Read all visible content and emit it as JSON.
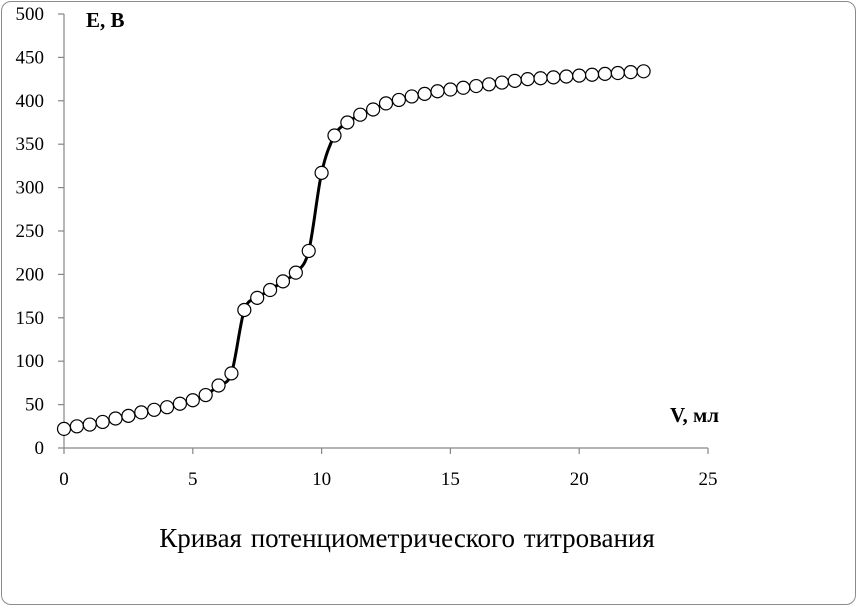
{
  "chart_data": {
    "type": "scatter",
    "title": "",
    "caption": "Кривая потенциометрического  титрования",
    "xlabel": "V, мл",
    "ylabel": "E, В",
    "xlim": [
      0,
      25
    ],
    "ylim": [
      0,
      500
    ],
    "xticks": [
      0,
      5,
      10,
      15,
      20,
      25
    ],
    "yticks": [
      0,
      50,
      100,
      150,
      200,
      250,
      300,
      350,
      400,
      450,
      500
    ],
    "grid": false,
    "legend": "none",
    "marker": "open-circle",
    "line": "smooth",
    "colors": {
      "line": "#000000",
      "marker_fill": "#ffffff",
      "marker_edge": "#000000",
      "axis": "#868686",
      "frame": "#8c8c8c"
    },
    "series": [
      {
        "x": [
          0,
          0.5,
          1,
          1.5,
          2,
          2.5,
          3,
          3.5,
          4,
          4.5,
          5,
          5.5,
          6,
          6.5,
          7,
          7.5,
          8,
          8.5,
          9,
          9.5,
          10,
          10.5,
          11,
          11.5,
          12,
          12.5,
          13,
          13.5,
          14,
          14.5,
          15,
          15.5,
          16,
          16.5,
          17,
          17.5,
          18,
          18.5,
          19,
          19.5,
          20,
          20.5,
          21,
          21.5,
          22,
          22.5
        ],
        "y": [
          22,
          25,
          27,
          30,
          34,
          37,
          41,
          44,
          47,
          51,
          55,
          61,
          72,
          86,
          159,
          173,
          182,
          192,
          202,
          227,
          317,
          360,
          375,
          384,
          390,
          397,
          401,
          405,
          408,
          411,
          413,
          415,
          417,
          419,
          421,
          423,
          425,
          426,
          427,
          428,
          429,
          430,
          431,
          432,
          433,
          434
        ]
      }
    ]
  }
}
